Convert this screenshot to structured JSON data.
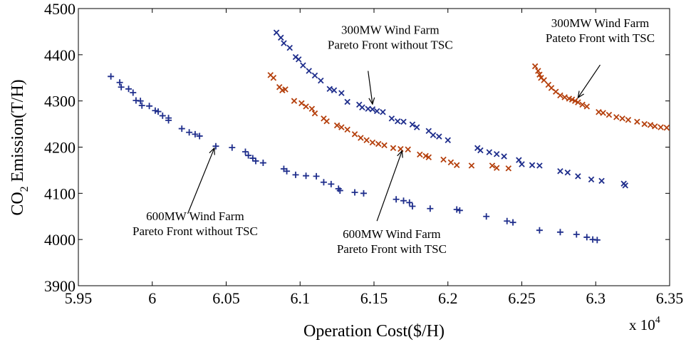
{
  "chart_data": {
    "type": "scatter",
    "title": "",
    "xlabel": "Operation Cost($/H)",
    "ylabel_main": "CO",
    "ylabel_sub": "2",
    "ylabel_rest": " Emission(T/H)",
    "x_multiplier": {
      "prefix": "x 10",
      "exponent": "4"
    },
    "xlim": [
      5.95,
      6.35
    ],
    "ylim": [
      3900,
      4500
    ],
    "xticks": [
      5.95,
      6.0,
      6.05,
      6.1,
      6.15,
      6.2,
      6.25,
      6.3,
      6.35
    ],
    "xtick_labels": [
      "5.95",
      "6",
      "6.05",
      "6.1",
      "6.15",
      "6.2",
      "6.25",
      "6.3",
      "6.35"
    ],
    "yticks": [
      3900,
      4000,
      4100,
      4200,
      4300,
      4400,
      4500
    ],
    "ytick_labels": [
      "3900",
      "4000",
      "4100",
      "4200",
      "4300",
      "4400",
      "4500"
    ],
    "colors": {
      "blue": "#1f2e8c",
      "orange": "#b5400d"
    },
    "series": [
      {
        "name": "600MW Wind Farm Pareto Front without TSC",
        "marker": "plus",
        "color": "#1f2e8c",
        "points": [
          [
            5.972,
            4353
          ],
          [
            5.978,
            4340
          ],
          [
            5.979,
            4330
          ],
          [
            5.984,
            4326
          ],
          [
            5.987,
            4318
          ],
          [
            5.989,
            4301
          ],
          [
            5.992,
            4300
          ],
          [
            5.993,
            4290
          ],
          [
            5.998,
            4289
          ],
          [
            6.002,
            4279
          ],
          [
            6.004,
            4277
          ],
          [
            6.007,
            4268
          ],
          [
            6.011,
            4263
          ],
          [
            6.011,
            4258
          ],
          [
            6.02,
            4240
          ],
          [
            6.025,
            4232
          ],
          [
            6.029,
            4228
          ],
          [
            6.032,
            4224
          ],
          [
            6.043,
            4202
          ],
          [
            6.054,
            4199
          ],
          [
            6.063,
            4190
          ],
          [
            6.065,
            4182
          ],
          [
            6.068,
            4176
          ],
          [
            6.07,
            4170
          ],
          [
            6.075,
            4166
          ],
          [
            6.089,
            4153
          ],
          [
            6.091,
            4148
          ],
          [
            6.097,
            4140
          ],
          [
            6.104,
            4138
          ],
          [
            6.111,
            4137
          ],
          [
            6.116,
            4124
          ],
          [
            6.121,
            4120
          ],
          [
            6.126,
            4110
          ],
          [
            6.127,
            4106
          ],
          [
            6.137,
            4102
          ],
          [
            6.143,
            4100
          ],
          [
            6.165,
            4087
          ],
          [
            6.17,
            4084
          ],
          [
            6.174,
            4080
          ],
          [
            6.176,
            4072
          ],
          [
            6.188,
            4067
          ],
          [
            6.206,
            4065
          ],
          [
            6.208,
            4063
          ],
          [
            6.226,
            4050
          ],
          [
            6.24,
            4040
          ],
          [
            6.244,
            4037
          ],
          [
            6.262,
            4020
          ],
          [
            6.276,
            4016
          ],
          [
            6.287,
            4011
          ],
          [
            6.294,
            4005
          ],
          [
            6.298,
            4000
          ],
          [
            6.301,
            3999
          ]
        ]
      },
      {
        "name": "300MW Wind Farm Pareto Front without TSC",
        "marker": "cross",
        "color": "#1f2e8c",
        "points": [
          [
            6.084,
            4448
          ],
          [
            6.087,
            4437
          ],
          [
            6.089,
            4425
          ],
          [
            6.093,
            4415
          ],
          [
            6.097,
            4395
          ],
          [
            6.099,
            4390
          ],
          [
            6.102,
            4377
          ],
          [
            6.106,
            4365
          ],
          [
            6.11,
            4355
          ],
          [
            6.114,
            4344
          ],
          [
            6.12,
            4326
          ],
          [
            6.123,
            4323
          ],
          [
            6.128,
            4317
          ],
          [
            6.132,
            4298
          ],
          [
            6.14,
            4292
          ],
          [
            6.142,
            4286
          ],
          [
            6.146,
            4283
          ],
          [
            6.149,
            4282
          ],
          [
            6.152,
            4278
          ],
          [
            6.156,
            4276
          ],
          [
            6.162,
            4262
          ],
          [
            6.166,
            4256
          ],
          [
            6.17,
            4255
          ],
          [
            6.176,
            4249
          ],
          [
            6.179,
            4243
          ],
          [
            6.187,
            4235
          ],
          [
            6.19,
            4226
          ],
          [
            6.194,
            4223
          ],
          [
            6.2,
            4215
          ],
          [
            6.22,
            4198
          ],
          [
            6.222,
            4193
          ],
          [
            6.228,
            4189
          ],
          [
            6.233,
            4185
          ],
          [
            6.238,
            4180
          ],
          [
            6.248,
            4172
          ],
          [
            6.25,
            4163
          ],
          [
            6.257,
            4161
          ],
          [
            6.262,
            4160
          ],
          [
            6.276,
            4148
          ],
          [
            6.281,
            4145
          ],
          [
            6.288,
            4137
          ],
          [
            6.297,
            4130
          ],
          [
            6.304,
            4127
          ],
          [
            6.319,
            4121
          ],
          [
            6.32,
            4117
          ]
        ]
      },
      {
        "name": "600MW Wind Farm Pareto Front with TSC",
        "marker": "cross",
        "color": "#b5400d",
        "points": [
          [
            6.08,
            4356
          ],
          [
            6.082,
            4350
          ],
          [
            6.086,
            4330
          ],
          [
            6.088,
            4323
          ],
          [
            6.09,
            4325
          ],
          [
            6.096,
            4300
          ],
          [
            6.101,
            4295
          ],
          [
            6.104,
            4288
          ],
          [
            6.108,
            4283
          ],
          [
            6.11,
            4273
          ],
          [
            6.116,
            4262
          ],
          [
            6.118,
            4256
          ],
          [
            6.125,
            4247
          ],
          [
            6.128,
            4243
          ],
          [
            6.132,
            4238
          ],
          [
            6.137,
            4228
          ],
          [
            6.141,
            4220
          ],
          [
            6.145,
            4215
          ],
          [
            6.149,
            4210
          ],
          [
            6.153,
            4207
          ],
          [
            6.157,
            4204
          ],
          [
            6.163,
            4198
          ],
          [
            6.168,
            4196
          ],
          [
            6.173,
            4195
          ],
          [
            6.181,
            4184
          ],
          [
            6.185,
            4181
          ],
          [
            6.187,
            4178
          ],
          [
            6.197,
            4173
          ],
          [
            6.202,
            4167
          ],
          [
            6.206,
            4161
          ],
          [
            6.216,
            4160
          ],
          [
            6.23,
            4160
          ],
          [
            6.233,
            4155
          ],
          [
            6.241,
            4154
          ]
        ]
      },
      {
        "name": "300MW Wind Farm Pateto Front with TSC",
        "marker": "cross",
        "color": "#b5400d",
        "points": [
          [
            6.259,
            4375
          ],
          [
            6.261,
            4365
          ],
          [
            6.262,
            4357
          ],
          [
            6.263,
            4350
          ],
          [
            6.265,
            4345
          ],
          [
            6.268,
            4335
          ],
          [
            6.27,
            4328
          ],
          [
            6.273,
            4320
          ],
          [
            6.276,
            4312
          ],
          [
            6.279,
            4308
          ],
          [
            6.282,
            4305
          ],
          [
            6.284,
            4303
          ],
          [
            6.286,
            4300
          ],
          [
            6.288,
            4297
          ],
          [
            6.291,
            4292
          ],
          [
            6.294,
            4288
          ],
          [
            6.302,
            4276
          ],
          [
            6.305,
            4274
          ],
          [
            6.309,
            4270
          ],
          [
            6.314,
            4265
          ],
          [
            6.318,
            4262
          ],
          [
            6.322,
            4259
          ],
          [
            6.328,
            4255
          ],
          [
            6.333,
            4250
          ],
          [
            6.337,
            4248
          ],
          [
            6.34,
            4245
          ],
          [
            6.344,
            4243
          ],
          [
            6.348,
            4242
          ]
        ]
      }
    ],
    "annotations": [
      {
        "lines": [
          "300MW Wind Farm",
          "Pareto Front without TSC"
        ],
        "text_at": [
          6.161,
          4445
        ],
        "anchor": "middle",
        "arrow_from": [
          6.146,
          4365
        ],
        "arrow_to": [
          6.149,
          4293
        ]
      },
      {
        "lines": [
          "300MW Wind Farm",
          "Pateto Front with TSC"
        ],
        "text_at": [
          6.303,
          4460
        ],
        "anchor": "middle",
        "arrow_from": [
          6.303,
          4378
        ],
        "arrow_to": [
          6.288,
          4307
        ]
      },
      {
        "lines": [
          "600MW Wind Farm",
          "Pareto Front without TSC"
        ],
        "text_at": [
          6.029,
          4042
        ],
        "anchor": "middle",
        "arrow_from": [
          6.024,
          4056
        ],
        "arrow_to": [
          6.042,
          4198
        ]
      },
      {
        "lines": [
          "600MW Wind Farm",
          "Pareto Front with TSC"
        ],
        "text_at": [
          6.162,
          4003
        ],
        "anchor": "middle",
        "arrow_from": [
          6.152,
          4040
        ],
        "arrow_to": [
          6.169,
          4192
        ]
      }
    ]
  }
}
